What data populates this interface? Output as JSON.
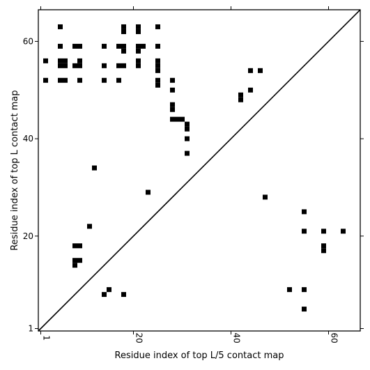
{
  "chart_data": {
    "type": "heatmap",
    "xlabel": "Residue index of top L/5 contact map",
    "ylabel": "Residue index of top L contact map",
    "xlim": [
      0.5,
      66.5
    ],
    "ylim": [
      0.5,
      66.5
    ],
    "x_ticks": [
      1,
      20,
      40,
      60
    ],
    "y_ticks": [
      1,
      20,
      40,
      60
    ],
    "grid": false,
    "diagonal": true,
    "cell_color": "#000000",
    "upper_cells": [
      [
        5,
        63
      ],
      [
        18,
        62
      ],
      [
        18,
        63
      ],
      [
        21,
        62
      ],
      [
        21,
        63
      ],
      [
        25,
        63
      ],
      [
        5,
        59
      ],
      [
        8,
        59
      ],
      [
        9,
        59
      ],
      [
        14,
        59
      ],
      [
        17,
        59
      ],
      [
        18,
        58
      ],
      [
        18,
        59
      ],
      [
        21,
        58
      ],
      [
        21,
        59
      ],
      [
        22,
        59
      ],
      [
        25,
        59
      ],
      [
        2,
        56
      ],
      [
        5,
        55
      ],
      [
        5,
        56
      ],
      [
        6,
        55
      ],
      [
        6,
        56
      ],
      [
        9,
        55
      ],
      [
        9,
        56
      ],
      [
        8,
        55
      ],
      [
        14,
        55
      ],
      [
        17,
        55
      ],
      [
        18,
        55
      ],
      [
        21,
        55
      ],
      [
        21,
        56
      ],
      [
        25,
        54
      ],
      [
        25,
        55
      ],
      [
        25,
        56
      ],
      [
        2,
        52
      ],
      [
        5,
        52
      ],
      [
        6,
        52
      ],
      [
        9,
        52
      ],
      [
        14,
        52
      ],
      [
        17,
        52
      ],
      [
        25,
        51
      ],
      [
        25,
        52
      ],
      [
        28,
        52
      ],
      [
        28,
        50
      ],
      [
        44,
        54
      ],
      [
        46,
        54
      ],
      [
        44,
        50
      ],
      [
        42,
        48
      ],
      [
        42,
        49
      ],
      [
        28,
        46
      ],
      [
        28,
        47
      ],
      [
        28,
        44
      ],
      [
        29,
        44
      ],
      [
        30,
        44
      ],
      [
        31,
        43
      ],
      [
        31,
        42
      ],
      [
        31,
        40
      ],
      [
        31,
        37
      ],
      [
        12,
        34
      ],
      [
        23,
        29
      ],
      [
        11,
        22
      ],
      [
        8,
        18
      ],
      [
        9,
        18
      ],
      [
        8,
        14
      ],
      [
        8,
        15
      ],
      [
        9,
        15
      ]
    ],
    "lower_cells": [
      [
        47,
        28
      ],
      [
        55,
        25
      ],
      [
        55,
        21
      ],
      [
        59,
        21
      ],
      [
        63,
        21
      ],
      [
        59,
        17
      ],
      [
        59,
        18
      ],
      [
        15,
        9
      ],
      [
        14,
        8
      ],
      [
        18,
        8
      ],
      [
        52,
        9
      ],
      [
        55,
        9
      ],
      [
        55,
        5
      ]
    ]
  }
}
